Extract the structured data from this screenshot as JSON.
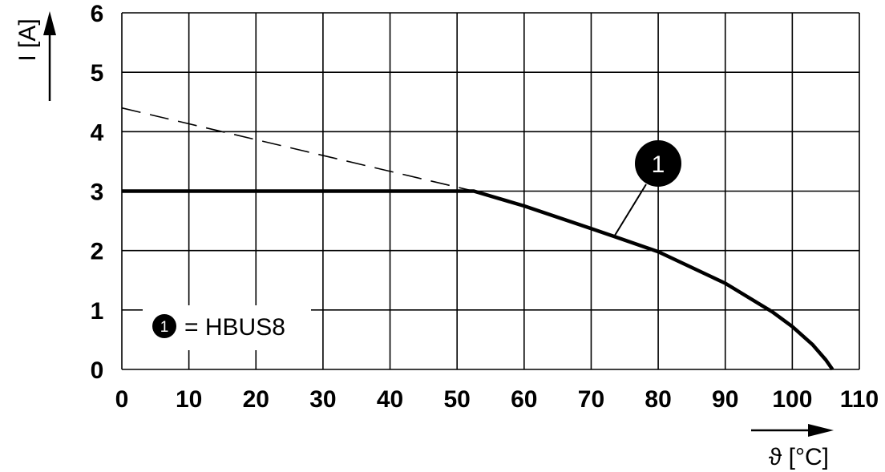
{
  "chart_data": {
    "type": "line",
    "x_axis": {
      "label": "ϑ [°C]",
      "range": [
        0,
        110
      ],
      "ticks": [
        "0",
        "10",
        "20",
        "30",
        "40",
        "50",
        "60",
        "70",
        "80",
        "90",
        "100",
        "110"
      ]
    },
    "y_axis": {
      "label": "I [A]",
      "range": [
        0,
        6
      ],
      "ticks": [
        "0",
        "1",
        "2",
        "3",
        "4",
        "5",
        "6"
      ]
    },
    "grid": true,
    "series": [
      {
        "name": "HBUS8",
        "style": "solid",
        "color": "#000000",
        "x": [
          0,
          10,
          20,
          30,
          40,
          52.5,
          60,
          70,
          80,
          90,
          97,
          100,
          103,
          105,
          106
        ],
        "y": [
          3,
          3,
          3,
          3,
          3,
          3,
          2.75,
          2.37,
          1.98,
          1.45,
          0.97,
          0.72,
          0.42,
          0.16,
          0
        ]
      },
      {
        "style": "dashed",
        "color": "#000000",
        "x": [
          0,
          52.5
        ],
        "y": [
          4.4,
          3
        ]
      }
    ],
    "annotation": {
      "marker": "1",
      "points_to": {
        "x": 73.5,
        "y": 2.25
      }
    },
    "legend": {
      "placement": "bottom-left",
      "marker": "1",
      "text": "= HBUS8"
    }
  }
}
